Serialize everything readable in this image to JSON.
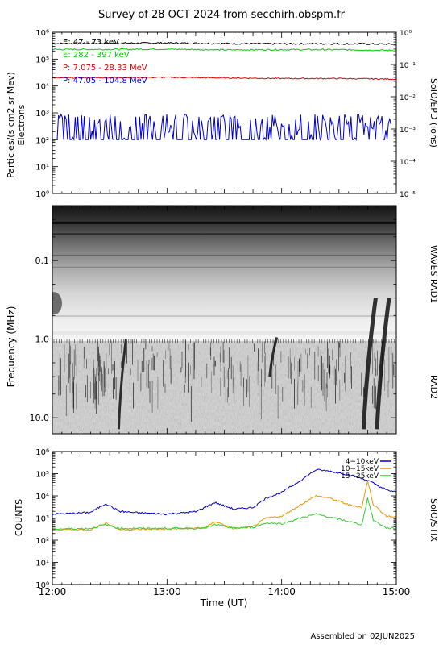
{
  "title": "Survey of 28 OCT 2024 from secchirh.obspm.fr",
  "footer": "Assembled on 02JUN2025",
  "x_axis": {
    "label": "Time (UT)",
    "range": [
      "12:00",
      "15:00"
    ],
    "ticks": [
      "12:00",
      "13:00",
      "14:00",
      "15:00"
    ]
  },
  "chart_data": [
    {
      "type": "line",
      "panel": "SoIO/EPD particles",
      "ylabel_lines": [
        "Particles/(s cm2 sr Mev)",
        "Electrons"
      ],
      "right_label": "SoIO/EPD (ions)",
      "y_scale": "log",
      "ylim": [
        1,
        1000000
      ],
      "y_ticks": [
        "10⁰",
        "10¹",
        "10²",
        "10³",
        "10⁴",
        "10⁵",
        "10⁶"
      ],
      "right_ylim": [
        1e-05,
        1
      ],
      "right_ticks": [
        "10⁻⁵",
        "10⁻⁴",
        "10⁻³",
        "10⁻²",
        "10⁻¹",
        "10⁰"
      ],
      "series": [
        {
          "name": "E: 47 - 73 keV",
          "color": "#000000",
          "x": [
            "12:00",
            "12:30",
            "13:00",
            "13:30",
            "14:00",
            "14:30",
            "15:00"
          ],
          "values": [
            380000,
            390000,
            400000,
            380000,
            370000,
            375000,
            360000
          ]
        },
        {
          "name": "E: 282 - 397 keV",
          "color": "#00cc00",
          "x": [
            "12:00",
            "12:30",
            "13:00",
            "13:30",
            "14:00",
            "14:30",
            "15:00"
          ],
          "values": [
            230000,
            230000,
            235000,
            220000,
            225000,
            225000,
            210000
          ]
        },
        {
          "name": "P: 7.075 - 28.33 MeV",
          "color": "#dd0000",
          "x": [
            "12:00",
            "12:30",
            "13:00",
            "13:30",
            "14:00",
            "14:30",
            "15:00"
          ],
          "values": [
            20000,
            20500,
            21000,
            20000,
            19000,
            19000,
            18000
          ]
        },
        {
          "name": "P: 47.05 - 104.8 MeV",
          "color": "#0000cc",
          "x": [
            "12:00",
            "12:30",
            "13:00",
            "13:30",
            "14:00",
            "14:30",
            "15:00"
          ],
          "values": [
            150,
            300,
            200,
            250,
            150,
            300,
            200
          ]
        }
      ],
      "grid": false,
      "legend": "top-left"
    },
    {
      "type": "heatmap",
      "panel": "WAVES RAD1 / RAD2 spectrogram",
      "ylabel": "Frequency (MHz)",
      "y_scale": "log",
      "y_reversed": true,
      "ylim": [
        0.02,
        16
      ],
      "y_ticks": [
        "0.1",
        "1.0",
        "10.0"
      ],
      "band_labels": [
        "WAVES RAD1",
        "RAD2"
      ],
      "band_split_mhz": 1.0,
      "bursts": [
        {
          "time": "12:36",
          "f_low_mhz": 1.0,
          "f_high_mhz": 14
        },
        {
          "time": "13:55",
          "f_low_mhz": 0.95,
          "f_high_mhz": 3
        },
        {
          "time": "14:45",
          "f_low_mhz": 0.3,
          "f_high_mhz": 14
        },
        {
          "time": "14:52",
          "f_low_mhz": 0.3,
          "f_high_mhz": 14
        }
      ]
    },
    {
      "type": "line",
      "panel": "SoIO/STIX",
      "ylabel": "COUNTS",
      "right_label": "SoIO/STIX",
      "y_scale": "log",
      "ylim": [
        1,
        1000000
      ],
      "y_ticks": [
        "10⁰",
        "10¹",
        "10²",
        "10³",
        "10⁴",
        "10⁵",
        "10⁶"
      ],
      "series": [
        {
          "name": "4−10keV",
          "color": "#0000cc",
          "x": [
            "12:00",
            "12:10",
            "12:20",
            "12:28",
            "12:35",
            "12:45",
            "13:00",
            "13:15",
            "13:25",
            "13:35",
            "13:45",
            "13:52",
            "14:00",
            "14:10",
            "14:18",
            "14:25",
            "14:35",
            "14:45",
            "14:55",
            "15:00"
          ],
          "values": [
            1500,
            1600,
            1800,
            4500,
            2000,
            1700,
            1500,
            1900,
            5000,
            2500,
            3000,
            8000,
            14000,
            50000,
            150000,
            130000,
            90000,
            50000,
            18000,
            15000
          ]
        },
        {
          "name": "10−15keV",
          "color": "#ee9900",
          "x": [
            "12:00",
            "12:20",
            "12:28",
            "12:35",
            "13:00",
            "13:20",
            "13:25",
            "13:35",
            "13:45",
            "13:52",
            "14:00",
            "14:10",
            "14:18",
            "14:25",
            "14:35",
            "14:42",
            "14:45",
            "14:48",
            "14:55",
            "15:00"
          ],
          "values": [
            300,
            300,
            600,
            300,
            320,
            350,
            700,
            330,
            400,
            1000,
            1200,
            4000,
            10000,
            8000,
            4000,
            3000,
            50000,
            4000,
            1200,
            1100
          ]
        },
        {
          "name": "15−25keV",
          "color": "#33cc33",
          "x": [
            "12:00",
            "12:20",
            "12:28",
            "12:35",
            "13:00",
            "13:20",
            "13:25",
            "13:35",
            "13:45",
            "13:52",
            "14:00",
            "14:10",
            "14:18",
            "14:25",
            "14:35",
            "14:42",
            "14:45",
            "14:48",
            "14:55",
            "15:00"
          ],
          "values": [
            320,
            340,
            500,
            340,
            340,
            350,
            500,
            350,
            380,
            600,
            550,
            1000,
            1500,
            1100,
            700,
            500,
            8000,
            800,
            350,
            350
          ]
        }
      ],
      "grid": false,
      "legend": "top-right"
    }
  ]
}
